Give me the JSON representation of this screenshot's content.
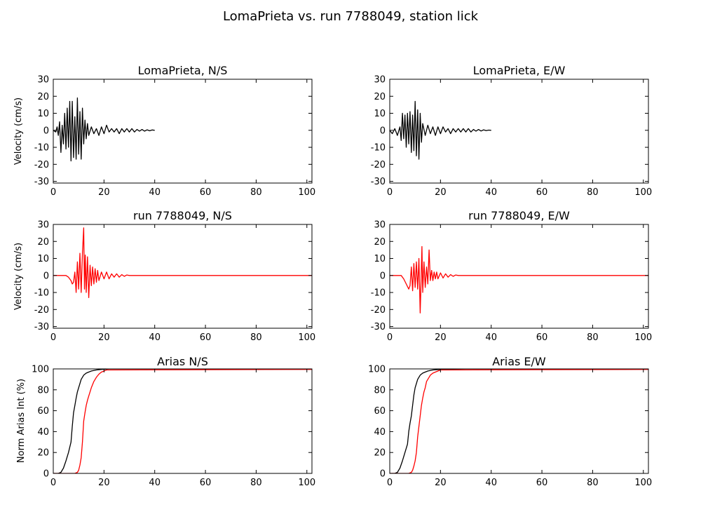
{
  "figure": {
    "title": "LomaPrieta vs. run 7788049, station lick"
  },
  "chart_data": [
    {
      "id": "p00",
      "type": "line",
      "title": "LomaPrieta, N/S",
      "xlabel": "",
      "ylabel": "Velocity (cm/s)",
      "xlim": [
        0,
        102
      ],
      "ylim": [
        -31,
        30
      ],
      "xticks": [
        0,
        20,
        40,
        60,
        80,
        100
      ],
      "yticks": [
        -30,
        -20,
        -10,
        0,
        10,
        20,
        30
      ],
      "series": [
        {
          "color": "#000000",
          "x": [
            0,
            1.0,
            1.5,
            2.0,
            2.5,
            3.0,
            3.5,
            4.0,
            4.5,
            5.0,
            5.5,
            6.0,
            6.5,
            7.0,
            7.5,
            8.0,
            8.5,
            9.0,
            9.5,
            10.0,
            10.5,
            11.0,
            11.5,
            12.0,
            12.5,
            13.0,
            13.5,
            14.0,
            15.0,
            16.0,
            17.0,
            18.0,
            19.0,
            20.0,
            21.0,
            22.0,
            23.0,
            24.0,
            25.0,
            26.0,
            27.0,
            28.0,
            29.0,
            30.0,
            31.0,
            32.0,
            33.0,
            34.0,
            35.0,
            36.0,
            37.0,
            38.0,
            39.0,
            40.0
          ],
          "y": [
            0,
            -1,
            2,
            -3,
            5,
            -13,
            3,
            -8,
            10,
            -11,
            13,
            -10,
            17,
            -18,
            17,
            -16,
            8,
            -17,
            19,
            -14,
            11,
            -17,
            13,
            -8,
            6,
            -5,
            4,
            -3,
            2,
            -2,
            1,
            -3,
            2,
            -2,
            3,
            -1,
            1,
            -1,
            1,
            -2,
            1,
            -1,
            1,
            -1,
            1,
            -1,
            0.5,
            -0.5,
            0.5,
            -0.5,
            0.3,
            -0.3,
            0.2,
            0
          ]
        }
      ]
    },
    {
      "id": "p01",
      "type": "line",
      "title": "LomaPrieta, E/W",
      "xlabel": "",
      "ylabel": "",
      "xlim": [
        0,
        102
      ],
      "ylim": [
        -31,
        30
      ],
      "xticks": [
        0,
        20,
        40,
        60,
        80,
        100
      ],
      "yticks": [
        -30,
        -20,
        -10,
        0,
        10,
        20,
        30
      ],
      "series": [
        {
          "color": "#000000",
          "x": [
            0,
            1.0,
            2.0,
            3.0,
            4.0,
            4.5,
            5.0,
            5.5,
            6.0,
            6.5,
            7.0,
            7.5,
            8.0,
            8.5,
            9.0,
            9.5,
            10.0,
            10.5,
            11.0,
            11.5,
            12.0,
            12.5,
            13.0,
            14.0,
            15.0,
            16.0,
            17.0,
            18.0,
            19.0,
            20.0,
            21.0,
            22.0,
            23.0,
            24.0,
            25.0,
            26.0,
            27.0,
            28.0,
            29.0,
            30.0,
            31.0,
            32.0,
            33.0,
            34.0,
            35.0,
            36.0,
            37.0,
            38.0,
            39.0,
            40.0
          ],
          "y": [
            0,
            -2,
            1,
            -3,
            2,
            -6,
            10,
            -5,
            9,
            -10,
            10,
            -8,
            11,
            -13,
            9,
            -12,
            17,
            -15,
            12,
            -17,
            10,
            -7,
            4,
            -3,
            3,
            -2,
            2,
            -3,
            2,
            -2,
            2,
            -1,
            1,
            -2,
            1,
            -1,
            1,
            -1,
            1,
            -1,
            1,
            -1,
            0.5,
            -0.5,
            0.5,
            -0.4,
            0.3,
            -0.2,
            0.1,
            0
          ]
        }
      ]
    },
    {
      "id": "p10",
      "type": "line",
      "title": "run 7788049, N/S",
      "xlabel": "",
      "ylabel": "Velocity (cm/s)",
      "xlim": [
        0,
        102
      ],
      "ylim": [
        -31,
        30
      ],
      "xticks": [
        0,
        20,
        40,
        60,
        80,
        100
      ],
      "yticks": [
        -30,
        -20,
        -10,
        0,
        10,
        20,
        30
      ],
      "series": [
        {
          "color": "#ff0000",
          "x": [
            0,
            5.0,
            6.0,
            7.0,
            7.5,
            8.0,
            8.5,
            9.0,
            9.5,
            10.0,
            10.5,
            11.0,
            11.5,
            12.0,
            12.3,
            12.6,
            13.0,
            13.5,
            14.0,
            14.5,
            15.0,
            15.5,
            16.0,
            16.5,
            17.0,
            17.5,
            18.0,
            19.0,
            20.0,
            21.0,
            22.0,
            23.0,
            24.0,
            25.0,
            26.0,
            27.0,
            28.0,
            29.0,
            30.0,
            102
          ],
          "y": [
            0,
            0,
            -1,
            -3,
            -5,
            -4,
            2,
            -10,
            8,
            -8,
            13,
            -10,
            13,
            28,
            -8,
            12,
            -10,
            11,
            -13,
            6,
            -6,
            5,
            -5,
            4,
            -4,
            3,
            -3,
            2,
            -2,
            2,
            -2,
            1,
            -1,
            1,
            -1,
            0.5,
            -0.5,
            0.3,
            0,
            0
          ]
        }
      ]
    },
    {
      "id": "p11",
      "type": "line",
      "title": "run 7788049, E/W",
      "xlabel": "",
      "ylabel": "",
      "xlim": [
        0,
        102
      ],
      "ylim": [
        -31,
        30
      ],
      "xticks": [
        0,
        20,
        40,
        60,
        80,
        100
      ],
      "yticks": [
        -30,
        -20,
        -10,
        0,
        10,
        20,
        30
      ],
      "series": [
        {
          "color": "#ff0000",
          "x": [
            0,
            4.5,
            5.5,
            6.5,
            7.5,
            8.0,
            8.5,
            9.0,
            9.5,
            10.0,
            10.5,
            11.0,
            11.5,
            12.0,
            12.3,
            12.7,
            13.0,
            13.5,
            14.0,
            14.5,
            15.0,
            15.5,
            16.0,
            16.5,
            17.0,
            17.5,
            18.0,
            18.5,
            19.0,
            20.0,
            21.0,
            22.0,
            23.0,
            24.0,
            25.0,
            26.0,
            27.0,
            28.0,
            102
          ],
          "y": [
            0,
            0,
            -2,
            -5,
            -8,
            -6,
            5,
            -9,
            7,
            -7,
            8,
            -8,
            10,
            -22,
            -6,
            17,
            -10,
            8,
            -7,
            5,
            -5,
            15,
            -3,
            3,
            -3,
            2,
            -2,
            2,
            -2,
            1.5,
            -1.5,
            1,
            -1,
            0.5,
            -0.5,
            0.3,
            0,
            0,
            0
          ]
        }
      ]
    },
    {
      "id": "p20",
      "type": "line",
      "title": "Arias N/S",
      "xlabel": "",
      "ylabel": "Norm Arias Int (%)",
      "xlim": [
        0,
        102
      ],
      "ylim": [
        0,
        100
      ],
      "xticks": [
        0,
        20,
        40,
        60,
        80,
        100
      ],
      "yticks": [
        0,
        20,
        40,
        60,
        80,
        100
      ],
      "series": [
        {
          "color": "#000000",
          "x": [
            0,
            2.0,
            3.0,
            4.0,
            5.0,
            6.0,
            7.0,
            7.5,
            8.0,
            8.5,
            9.0,
            9.5,
            10.0,
            10.5,
            11.0,
            12.0,
            13.0,
            14.0,
            15.0,
            17.0,
            19.0,
            22.0,
            102
          ],
          "y": [
            0,
            0,
            1,
            5,
            12,
            20,
            30,
            45,
            58,
            65,
            72,
            78,
            82,
            86,
            90,
            94,
            96,
            97,
            98,
            99,
            99.5,
            100,
            100
          ]
        },
        {
          "color": "#ff0000",
          "x": [
            0,
            8.5,
            9.5,
            10.0,
            10.5,
            11.0,
            11.5,
            12.0,
            12.5,
            13.0,
            13.5,
            14.0,
            15.0,
            16.0,
            17.0,
            18.0,
            19.0,
            20.0,
            21.0,
            102
          ],
          "y": [
            0,
            0,
            1,
            3,
            8,
            15,
            30,
            50,
            58,
            65,
            70,
            74,
            82,
            88,
            92,
            95,
            97,
            98,
            99,
            99.5
          ]
        }
      ]
    },
    {
      "id": "p21",
      "type": "line",
      "title": "Arias E/W",
      "xlabel": "",
      "ylabel": "",
      "xlim": [
        0,
        102
      ],
      "ylim": [
        0,
        100
      ],
      "xticks": [
        0,
        20,
        40,
        60,
        80,
        100
      ],
      "yticks": [
        0,
        20,
        40,
        60,
        80,
        100
      ],
      "series": [
        {
          "color": "#000000",
          "x": [
            0,
            2.0,
            3.0,
            4.0,
            5.0,
            6.0,
            7.0,
            7.5,
            8.0,
            8.5,
            9.0,
            9.5,
            10.0,
            10.5,
            11.0,
            12.0,
            13.0,
            14.0,
            15.0,
            17.0,
            20.0,
            30.0,
            102
          ],
          "y": [
            0,
            0,
            1,
            5,
            12,
            20,
            28,
            40,
            48,
            55,
            65,
            75,
            82,
            86,
            90,
            94,
            96,
            97,
            98,
            99,
            99.5,
            100,
            100
          ]
        },
        {
          "color": "#ff0000",
          "x": [
            0,
            7.5,
            8.5,
            9.0,
            9.5,
            10.0,
            10.5,
            11.0,
            11.5,
            12.0,
            12.5,
            13.0,
            13.5,
            14.0,
            14.5,
            15.0,
            16.0,
            17.0,
            18.0,
            19.0,
            20.0,
            102
          ],
          "y": [
            0,
            0,
            1,
            3,
            7,
            12,
            20,
            35,
            45,
            55,
            65,
            72,
            78,
            82,
            88,
            90,
            94,
            96,
            97,
            98,
            99,
            99.5
          ]
        }
      ]
    }
  ]
}
